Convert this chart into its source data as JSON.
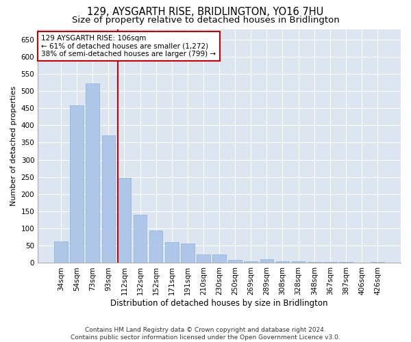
{
  "title": "129, AYSGARTH RISE, BRIDLINGTON, YO16 7HU",
  "subtitle": "Size of property relative to detached houses in Bridlington",
  "xlabel": "Distribution of detached houses by size in Bridlington",
  "ylabel": "Number of detached properties",
  "categories": [
    "34sqm",
    "54sqm",
    "73sqm",
    "93sqm",
    "112sqm",
    "132sqm",
    "152sqm",
    "171sqm",
    "191sqm",
    "210sqm",
    "230sqm",
    "250sqm",
    "269sqm",
    "289sqm",
    "308sqm",
    "328sqm",
    "348sqm",
    "367sqm",
    "387sqm",
    "406sqm",
    "426sqm"
  ],
  "values": [
    62,
    458,
    522,
    370,
    248,
    140,
    95,
    60,
    57,
    25,
    24,
    8,
    5,
    10,
    5,
    5,
    2,
    3,
    2,
    1,
    2
  ],
  "bar_color": "#aec6e8",
  "bar_edge_color": "#8ab0d8",
  "vline_color": "#cc0000",
  "annotation_text": "129 AYSGARTH RISE: 106sqm\n← 61% of detached houses are smaller (1,272)\n38% of semi-detached houses are larger (799) →",
  "annotation_box_color": "#ffffff",
  "annotation_box_edge": "#cc0000",
  "ylim": [
    0,
    680
  ],
  "yticks": [
    0,
    50,
    100,
    150,
    200,
    250,
    300,
    350,
    400,
    450,
    500,
    550,
    600,
    650
  ],
  "background_color": "#dde5f0",
  "grid_color": "#ffffff",
  "fig_background": "#ffffff",
  "footer": "Contains HM Land Registry data © Crown copyright and database right 2024.\nContains public sector information licensed under the Open Government Licence v3.0.",
  "title_fontsize": 10.5,
  "subtitle_fontsize": 9.5,
  "xlabel_fontsize": 8.5,
  "ylabel_fontsize": 8,
  "tick_fontsize": 7.5,
  "annotation_fontsize": 7.5,
  "footer_fontsize": 6.5
}
